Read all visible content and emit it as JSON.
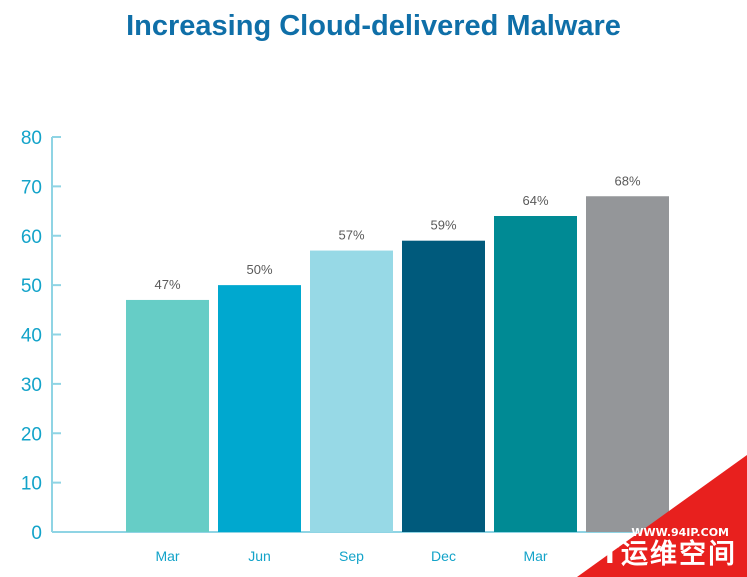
{
  "chart_data": {
    "type": "bar",
    "title": "Increasing Cloud-delivered Malware",
    "xlabel": "",
    "ylabel": "",
    "categories": [
      "Mar",
      "Jun",
      "Sep",
      "Dec",
      "Mar",
      ""
    ],
    "values": [
      47,
      50,
      57,
      59,
      64,
      68
    ],
    "data_labels": [
      "47%",
      "50%",
      "57%",
      "59%",
      "64%",
      "68%"
    ],
    "bar_colors": [
      "#66cdc6",
      "#00a8cf",
      "#97d9e6",
      "#005a7c",
      "#008a94",
      "#949699"
    ],
    "ylim": [
      0,
      80
    ],
    "yticks": [
      "0",
      "10",
      "20",
      "30",
      "40",
      "50",
      "60",
      "70",
      "80"
    ],
    "grid": false,
    "legend": "none"
  },
  "watermark": {
    "url": "WWW.94IP.COM",
    "name": "IT运维空间",
    "color": "#e8201e"
  }
}
